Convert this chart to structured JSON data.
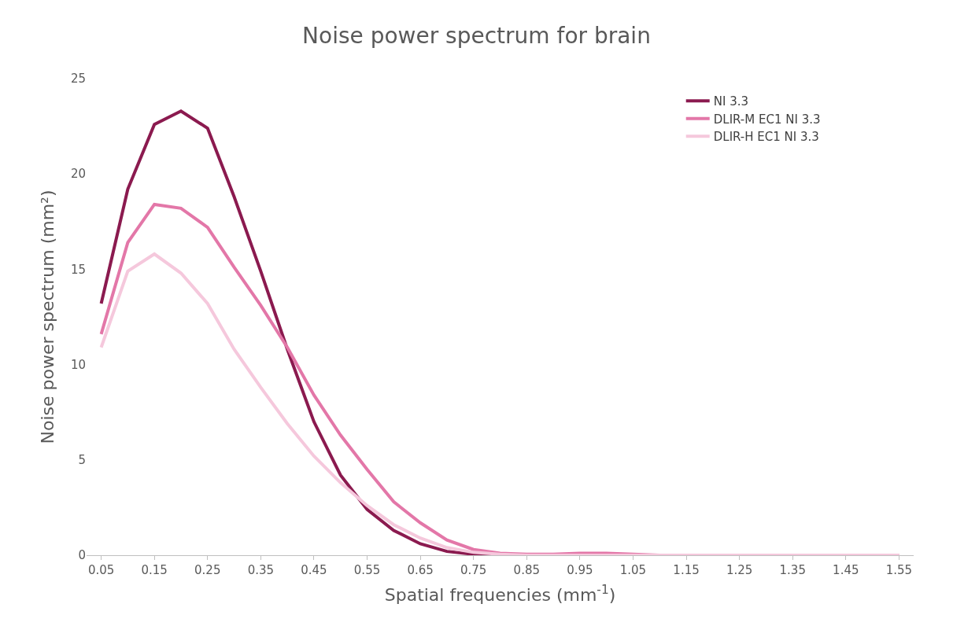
{
  "chart_data": {
    "type": "line",
    "title": "Noise power spectrum for brain",
    "xlabel": "Spatial frequencies (mm$^{-1}$)",
    "ylabel": "Noise power spectrum (mm²)",
    "categories": [
      "0.05",
      null,
      "0.15",
      null,
      "0.25",
      null,
      "0.35",
      null,
      "0.45",
      null,
      "0.55",
      null,
      "0.65",
      null,
      "0.75",
      null,
      "0.85",
      null,
      "0.95",
      null,
      "1.05",
      null,
      "1.15",
      null,
      "1.25",
      null,
      "1.35",
      null,
      "1.45",
      null,
      "1.55"
    ],
    "series": [
      {
        "name": "NI 3.3",
        "color": "#8b1a4f",
        "values": [
          13.2,
          19.2,
          22.6,
          23.3,
          22.4,
          18.8,
          14.9,
          10.8,
          7.0,
          4.2,
          2.4,
          1.3,
          0.6,
          0.2,
          0.05,
          0,
          0,
          null,
          null,
          null,
          null,
          null,
          null,
          null,
          null,
          null,
          null,
          null,
          null,
          null,
          null
        ]
      },
      {
        "name": "DLIR-M EC1 NI 3.3",
        "color": "#e377a8",
        "values": [
          11.6,
          16.4,
          18.4,
          18.2,
          17.2,
          15.1,
          13.1,
          10.9,
          8.4,
          6.3,
          4.5,
          2.8,
          1.7,
          0.8,
          0.3,
          0.1,
          0.05,
          0.05,
          0.1,
          0.1,
          0.05,
          0,
          0,
          0,
          0,
          0,
          0,
          0,
          0,
          0,
          0
        ]
      },
      {
        "name": "DLIR-H EC1 NI 3.3",
        "color": "#f5c8dc",
        "values": [
          10.9,
          14.9,
          15.8,
          14.8,
          13.2,
          10.8,
          8.8,
          6.9,
          5.2,
          3.8,
          2.6,
          1.6,
          0.9,
          0.4,
          0.15,
          0.05,
          0,
          0,
          0,
          0,
          0,
          0,
          0,
          0,
          0,
          0,
          0,
          0,
          0,
          0,
          0
        ]
      }
    ],
    "ylim": [
      0,
      25
    ],
    "yticks": [
      0,
      5,
      10,
      15,
      20,
      25
    ],
    "legend": "top right",
    "marker": "none",
    "line_style": "solid"
  }
}
